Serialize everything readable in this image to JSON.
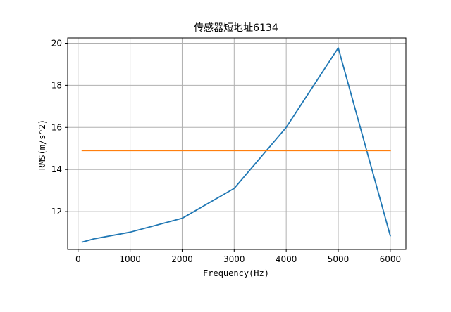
{
  "chart_data": {
    "type": "line",
    "title": "传感器短地址6134",
    "xlabel": "Frequency(Hz)",
    "ylabel": "RMS(m/s^2)",
    "xlim": [
      -200,
      6300
    ],
    "ylim": [
      10.2,
      20.25
    ],
    "xticks": [
      0,
      1000,
      2000,
      3000,
      4000,
      5000,
      6000
    ],
    "yticks": [
      12,
      14,
      16,
      18,
      20
    ],
    "grid": true,
    "series": [
      {
        "color": "#1f77b4",
        "points": [
          [
            80,
            10.55
          ],
          [
            300,
            10.7
          ],
          [
            1000,
            11.02
          ],
          [
            2000,
            11.68
          ],
          [
            3000,
            13.1
          ],
          [
            4000,
            16.0
          ],
          [
            5000,
            19.78
          ],
          [
            6000,
            10.85
          ]
        ]
      },
      {
        "color": "#ff7f0e",
        "points": [
          [
            80,
            14.9
          ],
          [
            6000,
            14.9
          ]
        ]
      }
    ]
  }
}
